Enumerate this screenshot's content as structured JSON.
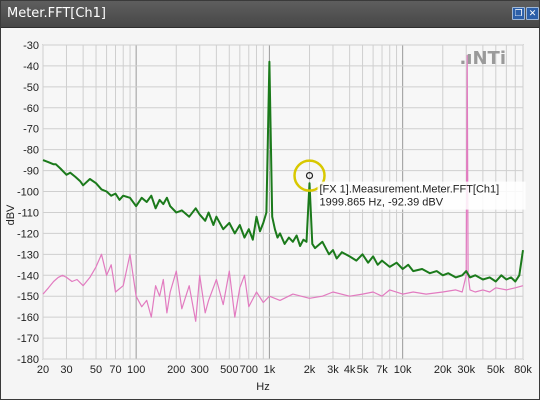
{
  "window": {
    "title": "Meter.FFT[Ch1]",
    "restore_label": "❐",
    "close_label": "✕"
  },
  "logo": {
    "text": ".ıNTi"
  },
  "colors": {
    "series_green": "#1b7a1b",
    "series_pink": "#e27bc0",
    "marker": "#d8c800",
    "grid_major": "#9a9a9a",
    "grid_minor": "#cfcfcf"
  },
  "chart_data": {
    "type": "line",
    "xscale": "log",
    "xlabel": "Hz",
    "ylabel": "dBV",
    "xlim": [
      20,
      80000
    ],
    "ylim": [
      -180,
      -30
    ],
    "grid": true,
    "yticks": [
      -30,
      -40,
      -50,
      -60,
      -70,
      -80,
      -90,
      -100,
      -110,
      -120,
      -130,
      -140,
      -150,
      -160,
      -170,
      -180
    ],
    "xticks": [
      {
        "v": 20,
        "label": "20"
      },
      {
        "v": 30,
        "label": "30"
      },
      {
        "v": 50,
        "label": "50"
      },
      {
        "v": 70,
        "label": "70"
      },
      {
        "v": 100,
        "label": "100"
      },
      {
        "v": 200,
        "label": "200"
      },
      {
        "v": 300,
        "label": "300"
      },
      {
        "v": 500,
        "label": "500"
      },
      {
        "v": 700,
        "label": "700"
      },
      {
        "v": 1000,
        "label": "1k"
      },
      {
        "v": 2000,
        "label": "2k"
      },
      {
        "v": 3000,
        "label": "3k"
      },
      {
        "v": 4000,
        "label": "4k"
      },
      {
        "v": 5000,
        "label": "5k"
      },
      {
        "v": 7000,
        "label": "7k"
      },
      {
        "v": 10000,
        "label": "10k"
      },
      {
        "v": 20000,
        "label": "20k"
      },
      {
        "v": 30000,
        "label": "30k"
      },
      {
        "v": 50000,
        "label": "50k"
      },
      {
        "v": 80000,
        "label": "80k"
      }
    ],
    "series": [
      {
        "color": "#1b7a1b",
        "x": [
          20,
          22,
          24,
          25,
          27,
          30,
          32,
          35,
          38,
          40,
          45,
          50,
          55,
          60,
          65,
          70,
          75,
          80,
          90,
          100,
          110,
          120,
          130,
          140,
          150,
          160,
          170,
          180,
          200,
          220,
          250,
          280,
          300,
          330,
          350,
          380,
          400,
          450,
          500,
          550,
          600,
          650,
          700,
          750,
          800,
          850,
          900,
          950,
          1000,
          1050,
          1100,
          1150,
          1200,
          1300,
          1400,
          1500,
          1600,
          1700,
          1800,
          1900,
          2000,
          2100,
          2200,
          2500,
          2800,
          3000,
          3200,
          3500,
          4000,
          4500,
          5000,
          5500,
          6000,
          6500,
          7000,
          8000,
          9000,
          10000,
          11000,
          12000,
          14000,
          16000,
          18000,
          20000,
          22000,
          25000,
          28000,
          30000,
          32000,
          35000,
          40000,
          45000,
          50000,
          55000,
          60000,
          65000,
          70000,
          75000,
          80000
        ],
        "y": [
          -85,
          -86,
          -87,
          -87,
          -89,
          -92,
          -91,
          -93,
          -95,
          -97,
          -94,
          -96,
          -99,
          -100,
          -102,
          -101,
          -104,
          -102,
          -103,
          -107,
          -103,
          -105,
          -102,
          -108,
          -104,
          -106,
          -103,
          -107,
          -110,
          -109,
          -112,
          -108,
          -111,
          -114,
          -110,
          -116,
          -112,
          -118,
          -115,
          -120,
          -116,
          -122,
          -118,
          -123,
          -112,
          -119,
          -115,
          -110,
          -38,
          -112,
          -118,
          -122,
          -120,
          -125,
          -122,
          -124,
          -121,
          -126,
          -123,
          -124,
          -96,
          -125,
          -127,
          -124,
          -130,
          -128,
          -132,
          -129,
          -131,
          -133,
          -130,
          -134,
          -131,
          -135,
          -133,
          -136,
          -134,
          -137,
          -135,
          -138,
          -137,
          -139,
          -138,
          -140,
          -139,
          -141,
          -140,
          -138,
          -141,
          -140,
          -142,
          -141,
          -143,
          -140,
          -142,
          -141,
          -143,
          -140,
          -128
        ]
      },
      {
        "color": "#e27bc0",
        "x": [
          20,
          22,
          24,
          26,
          28,
          30,
          33,
          36,
          40,
          45,
          50,
          55,
          60,
          65,
          70,
          80,
          90,
          100,
          110,
          120,
          130,
          140,
          150,
          160,
          170,
          180,
          200,
          220,
          250,
          280,
          300,
          330,
          350,
          400,
          450,
          500,
          550,
          600,
          650,
          700,
          800,
          900,
          1000,
          1200,
          1500,
          2000,
          2500,
          3000,
          4000,
          5000,
          6000,
          7000,
          8000,
          10000,
          12000,
          15000,
          20000,
          25000,
          28000,
          30000,
          30500,
          31000,
          32000,
          35000,
          40000,
          45000,
          50000,
          60000,
          70000,
          80000
        ],
        "y": [
          -149,
          -146,
          -143,
          -141,
          -140,
          -141,
          -143,
          -142,
          -145,
          -141,
          -136,
          -130,
          -140,
          -135,
          -148,
          -145,
          -130,
          -150,
          -155,
          -152,
          -160,
          -145,
          -150,
          -142,
          -158,
          -148,
          -138,
          -156,
          -145,
          -162,
          -140,
          -158,
          -152,
          -142,
          -154,
          -138,
          -160,
          -146,
          -140,
          -155,
          -148,
          -153,
          -150,
          -152,
          -149,
          -151,
          -150,
          -148,
          -150,
          -149,
          -148,
          -150,
          -147,
          -149,
          -148,
          -149,
          -148,
          -147,
          -148,
          -140,
          -35,
          -140,
          -147,
          -148,
          -147,
          -148,
          -146,
          -147,
          -146,
          -145
        ]
      }
    ],
    "annotation": {
      "x": 1999.865,
      "y": -92.39,
      "lines": [
        "[FX 1].Measurement.Meter.FFT[Ch1]",
        "1999.865 Hz, -92.39 dBV"
      ]
    }
  }
}
